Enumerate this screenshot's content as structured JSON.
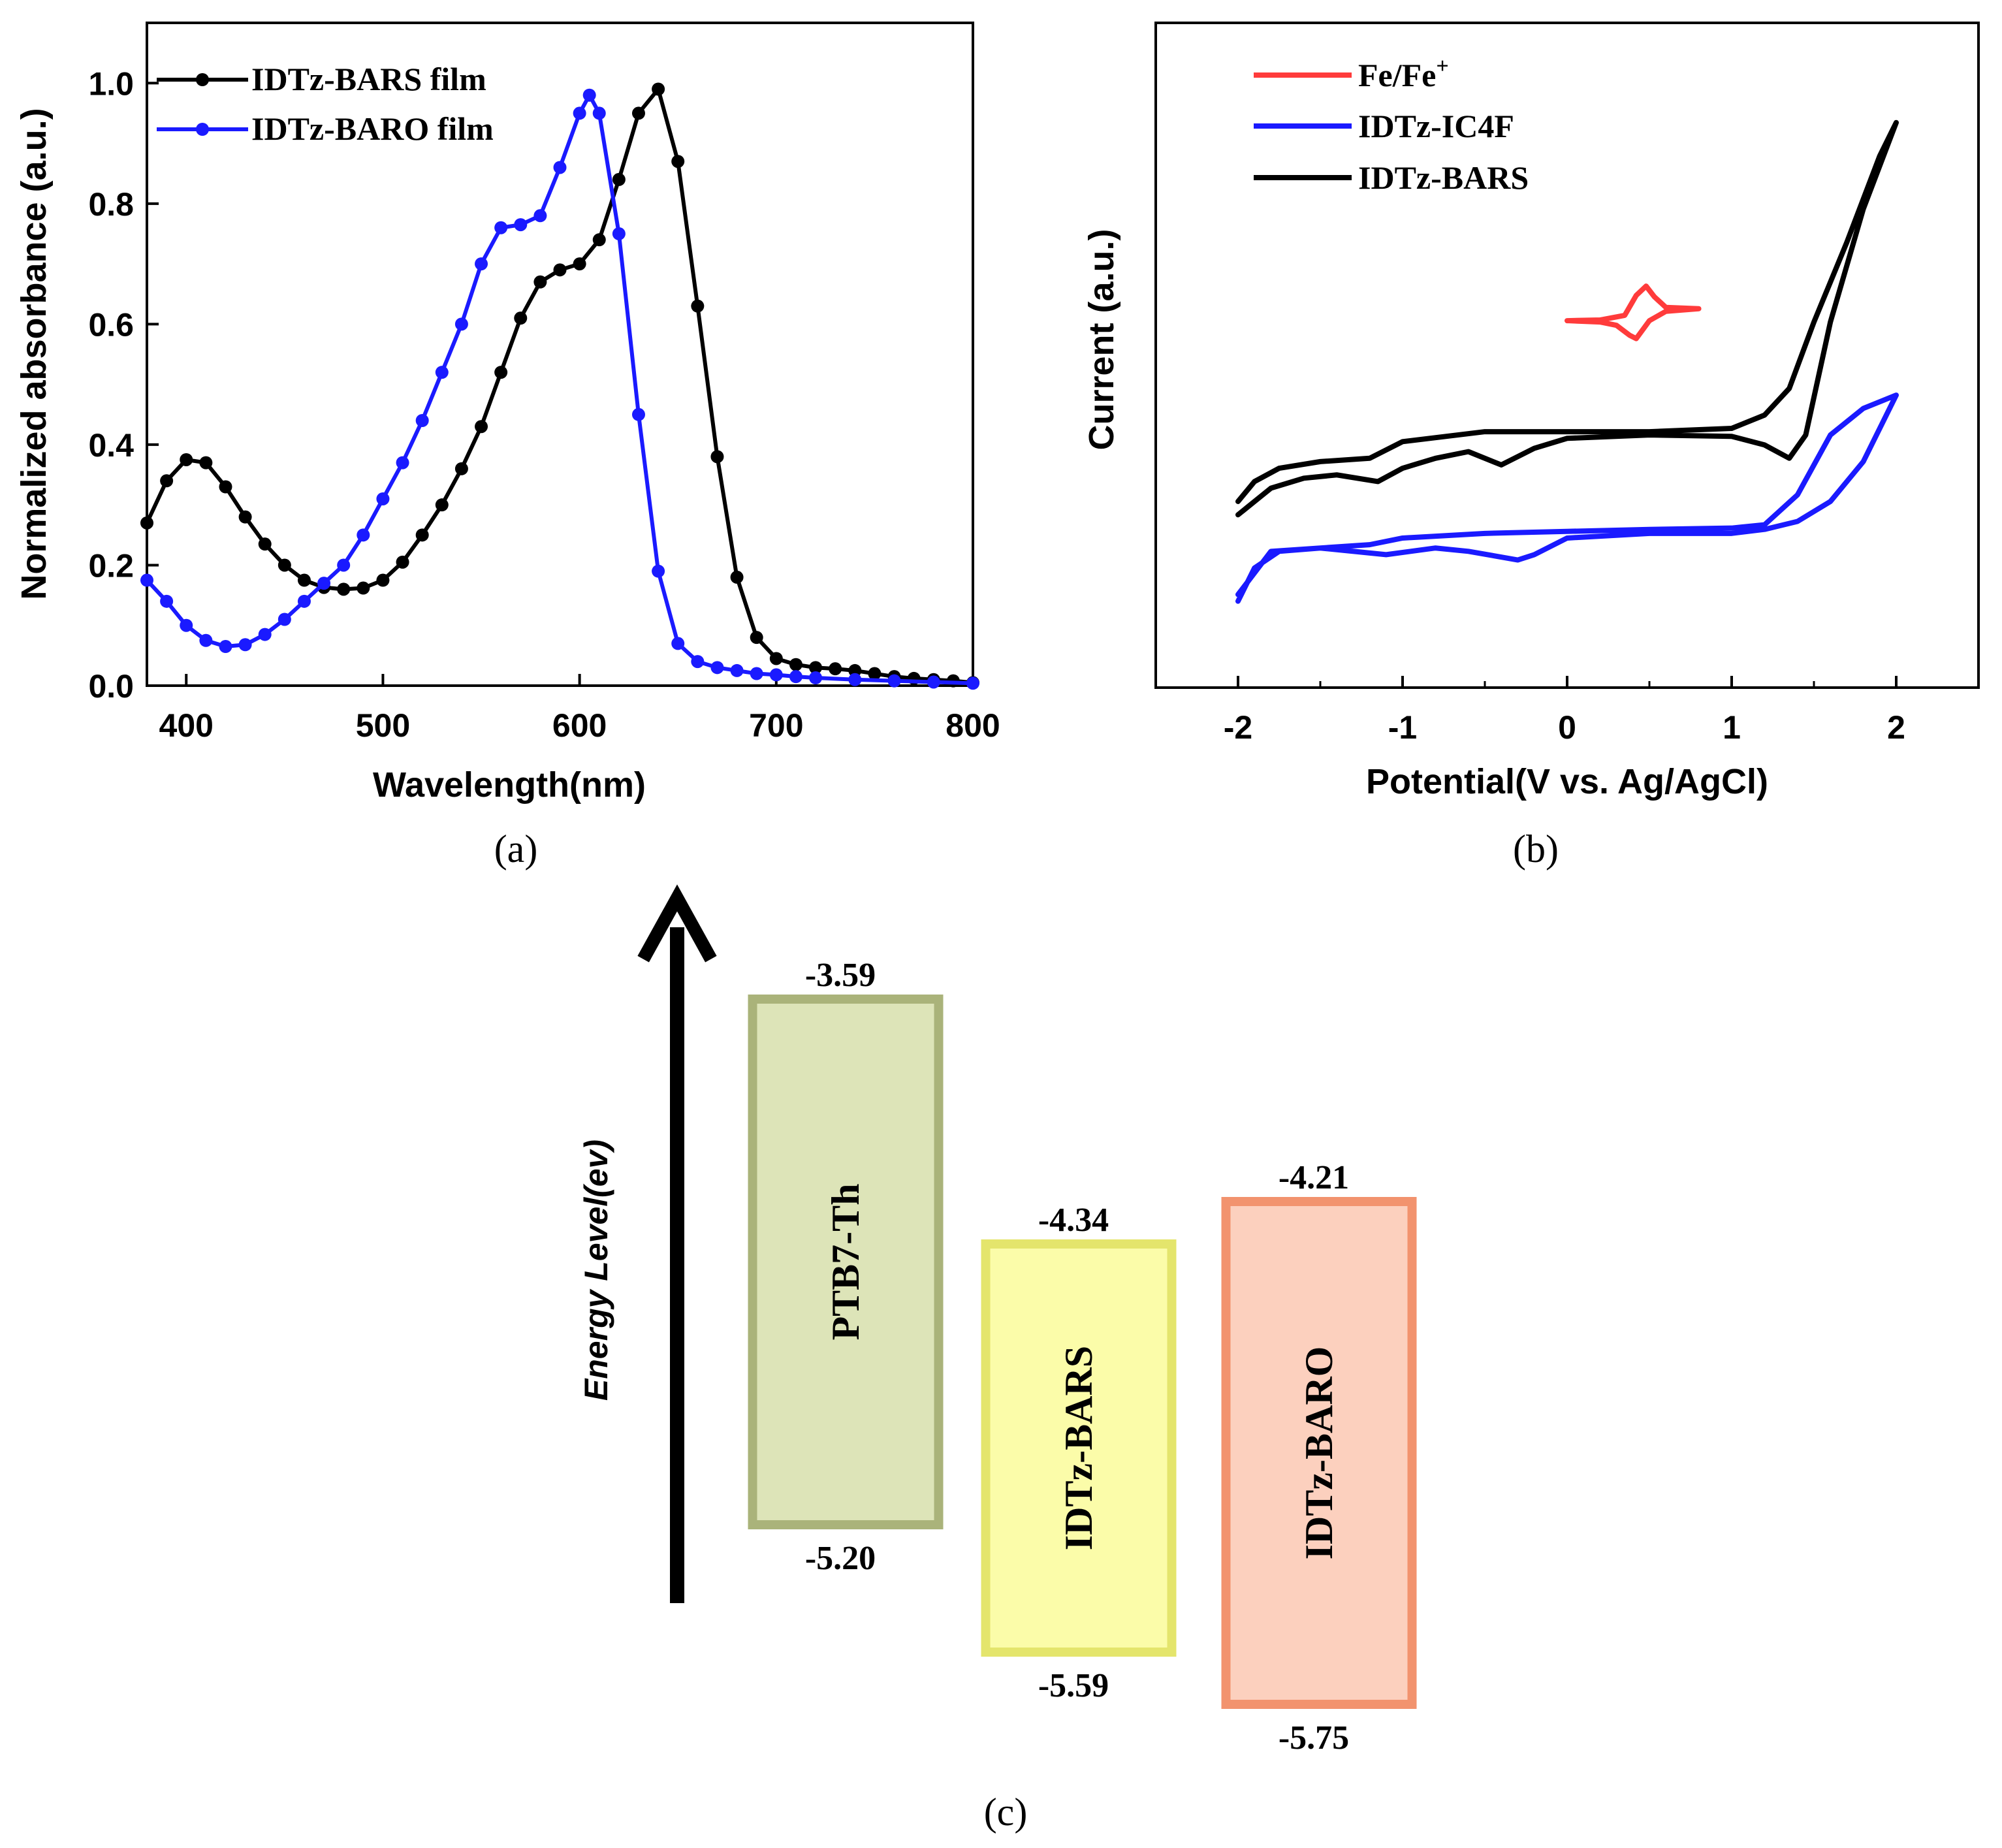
{
  "chart_data": [
    {
      "panel_label": "(a)",
      "type": "line",
      "xlabel": "Wavelength(nm)",
      "ylabel": "Normalized absorbance (a.u.)",
      "xlim": [
        380,
        800
      ],
      "ylim": [
        0,
        1.1
      ],
      "xticks": [
        "400",
        "500",
        "600",
        "700",
        "800"
      ],
      "yticks": [
        "0.0",
        "0.2",
        "0.4",
        "0.6",
        "0.8",
        "1.0"
      ],
      "legend": "top-left",
      "series": [
        {
          "name": "IDTz-BARS film",
          "color": "#000000",
          "x": [
            380,
            390,
            400,
            410,
            420,
            430,
            440,
            450,
            460,
            470,
            480,
            490,
            500,
            510,
            520,
            530,
            540,
            550,
            560,
            570,
            580,
            590,
            600,
            610,
            620,
            630,
            640,
            650,
            660,
            670,
            680,
            690,
            700,
            710,
            720,
            730,
            740,
            750,
            760,
            770,
            780,
            790,
            800
          ],
          "y": [
            0.27,
            0.34,
            0.375,
            0.37,
            0.33,
            0.28,
            0.235,
            0.2,
            0.175,
            0.163,
            0.16,
            0.162,
            0.175,
            0.205,
            0.25,
            0.3,
            0.36,
            0.43,
            0.52,
            0.61,
            0.67,
            0.69,
            0.7,
            0.74,
            0.84,
            0.95,
            0.99,
            0.87,
            0.63,
            0.38,
            0.18,
            0.08,
            0.045,
            0.035,
            0.03,
            0.028,
            0.025,
            0.02,
            0.015,
            0.012,
            0.01,
            0.008,
            0.005
          ]
        },
        {
          "name": "IDTz-BARO film",
          "color": "#1a1aff",
          "x": [
            380,
            390,
            400,
            410,
            420,
            430,
            440,
            450,
            460,
            470,
            480,
            490,
            500,
            510,
            520,
            530,
            540,
            550,
            560,
            570,
            580,
            590,
            600,
            605,
            610,
            620,
            630,
            640,
            650,
            660,
            670,
            680,
            690,
            700,
            710,
            720,
            740,
            760,
            780,
            800
          ],
          "y": [
            0.175,
            0.14,
            0.1,
            0.075,
            0.065,
            0.068,
            0.085,
            0.11,
            0.14,
            0.17,
            0.2,
            0.25,
            0.31,
            0.37,
            0.44,
            0.52,
            0.6,
            0.7,
            0.76,
            0.765,
            0.78,
            0.86,
            0.95,
            0.98,
            0.95,
            0.75,
            0.45,
            0.19,
            0.07,
            0.04,
            0.03,
            0.025,
            0.02,
            0.018,
            0.015,
            0.013,
            0.01,
            0.008,
            0.006,
            0.004
          ]
        }
      ]
    },
    {
      "panel_label": "(b)",
      "type": "line",
      "xlabel": "Potential(V vs. Ag/AgCl)",
      "ylabel": "Current (a.u.)",
      "xlim": [
        -2.5,
        2.5
      ],
      "ylim": [
        0,
        1
      ],
      "xticks": [
        "-2",
        "-1",
        "0",
        "1",
        "2"
      ],
      "legend": "top-left",
      "series": [
        {
          "name_base": "Fe/Fe",
          "name_sup": "+",
          "color": "#ff3b3b",
          "forward": {
            "x": [
              0.0,
              0.2,
              0.35,
              0.42,
              0.48,
              0.53,
              0.6,
              0.8
            ],
            "y": [
              0.552,
              0.553,
              0.56,
              0.59,
              0.604,
              0.588,
              0.572,
              0.57
            ]
          },
          "reverse": {
            "x": [
              0.8,
              0.6,
              0.5,
              0.42,
              0.38,
              0.3,
              0.2,
              0.0
            ],
            "y": [
              0.57,
              0.566,
              0.552,
              0.525,
              0.53,
              0.545,
              0.55,
              0.552
            ]
          }
        },
        {
          "name": "IDTz-IC4F",
          "color": "#1a1aff",
          "forward": {
            "x": [
              -2.0,
              -1.9,
              -1.75,
              -1.5,
              -1.2,
              -1.0,
              -0.5,
              0.0,
              0.5,
              1.0,
              1.2,
              1.4,
              1.6,
              1.8,
              2.0
            ],
            "y": [
              0.13,
              0.18,
              0.205,
              0.21,
              0.215,
              0.225,
              0.232,
              0.235,
              0.238,
              0.24,
              0.245,
              0.29,
              0.38,
              0.42,
              0.44
            ]
          },
          "reverse": {
            "x": [
              2.0,
              1.8,
              1.6,
              1.4,
              1.2,
              1.0,
              0.5,
              0.0,
              -0.2,
              -0.3,
              -0.6,
              -0.8,
              -1.1,
              -1.5,
              -1.8,
              -2.0
            ],
            "y": [
              0.44,
              0.34,
              0.28,
              0.25,
              0.238,
              0.232,
              0.232,
              0.225,
              0.2,
              0.192,
              0.205,
              0.21,
              0.2,
              0.21,
              0.205,
              0.14
            ]
          }
        },
        {
          "name": "IDTz-BARS",
          "color": "#000000",
          "forward": {
            "x": [
              -2.0,
              -1.9,
              -1.75,
              -1.5,
              -1.2,
              -1.0,
              -0.5,
              0.0,
              0.5,
              1.0,
              1.2,
              1.35,
              1.5,
              1.7,
              1.9,
              2.0
            ],
            "y": [
              0.28,
              0.31,
              0.33,
              0.34,
              0.345,
              0.37,
              0.385,
              0.385,
              0.385,
              0.39,
              0.41,
              0.45,
              0.55,
              0.67,
              0.8,
              0.85
            ]
          },
          "reverse": {
            "x": [
              2.0,
              1.8,
              1.6,
              1.45,
              1.35,
              1.2,
              1.0,
              0.5,
              0.0,
              -0.2,
              -0.4,
              -0.6,
              -0.8,
              -1.0,
              -1.15,
              -1.4,
              -1.6,
              -1.8,
              -2.0
            ],
            "y": [
              0.85,
              0.72,
              0.55,
              0.38,
              0.345,
              0.365,
              0.378,
              0.38,
              0.375,
              0.36,
              0.335,
              0.355,
              0.345,
              0.33,
              0.31,
              0.32,
              0.315,
              0.3,
              0.26
            ]
          }
        }
      ]
    },
    {
      "panel_label": "(c)",
      "type": "bar",
      "ylabel": "Energy Level(ev)",
      "ylim": [
        -6.0,
        -3.3
      ],
      "categories": [
        "PTB7-Th",
        "IDTz-BARS",
        "IDTz-BARO"
      ],
      "lumo_labels": [
        "-3.59",
        "-4.34",
        "-4.21"
      ],
      "homo_labels": [
        "-5.20",
        "-5.59",
        "-5.75"
      ],
      "lumo": [
        -3.59,
        -4.34,
        -4.21
      ],
      "homo": [
        -5.2,
        -5.59,
        -5.75
      ],
      "fill_colors": [
        "#dde4b8",
        "#fbfca9",
        "#fcd0be"
      ],
      "border_colors": [
        "#aab37a",
        "#e4e56c",
        "#f2936e"
      ]
    }
  ]
}
